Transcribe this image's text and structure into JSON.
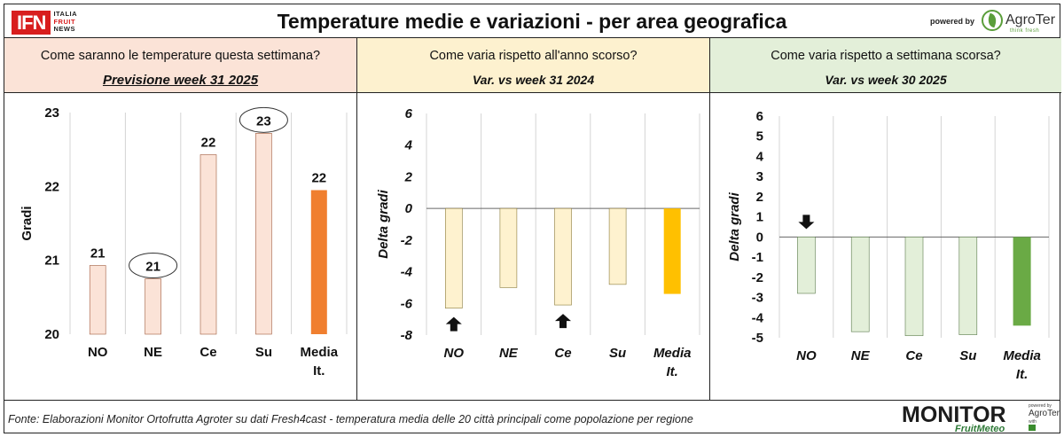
{
  "header": {
    "title": "Temperature medie e variazioni - per area geografica",
    "logo_left": {
      "mark": "IFN",
      "lines": [
        "ITALIA",
        "FRUIT",
        "NEWS"
      ]
    },
    "powered_by": "powered by",
    "logo_right": {
      "name": "AgroTer",
      "tagline": "think fresh"
    }
  },
  "panels": [
    {
      "question": "Come saranno le temperature questa settimana?",
      "subtitle": "Previsione week 31 2025",
      "accent": "#fbe3d7"
    },
    {
      "question": "Come varia rispetto all'anno scorso?",
      "subtitle": "Var. vs week 31 2024",
      "accent": "#fdf1cf"
    },
    {
      "question": "Come varia rispetto a settimana scorsa?",
      "subtitle": "Var. vs week 30 2025",
      "accent": "#e3efd9"
    }
  ],
  "chart_data": [
    {
      "type": "bar",
      "categories": [
        "NO",
        "NE",
        "Ce",
        "Su",
        "Media It."
      ],
      "values": [
        20.93,
        20.75,
        22.43,
        22.72,
        21.95
      ],
      "data_labels": [
        "21",
        "21",
        "22",
        "23",
        "22"
      ],
      "highlighted_labels": [
        "NE",
        "Su"
      ],
      "ylabel": "Gradi",
      "ylim": [
        20,
        23
      ],
      "yticks": [
        20,
        21,
        22,
        23
      ],
      "grid": true,
      "colors": {
        "bar": "#fbe3d7",
        "edge": "#a05a3c",
        "average": "#f07f2f"
      }
    },
    {
      "type": "bar",
      "categories": [
        "NO",
        "NE",
        "Ce",
        "Su",
        "Media It."
      ],
      "values": [
        -6.3,
        -5.0,
        -6.1,
        -4.8,
        -5.4
      ],
      "ylabel": "Delta gradi",
      "ylim": [
        -8,
        6
      ],
      "yticks": [
        6,
        4,
        2,
        0,
        -2,
        -4,
        -6,
        -8
      ],
      "grid": true,
      "up_arrows": [
        "NO",
        "Ce"
      ],
      "colors": {
        "bar": "#fef2cf",
        "edge": "#8a7a3a",
        "average": "#ffc000"
      }
    },
    {
      "type": "bar",
      "categories": [
        "NO",
        "NE",
        "Ce",
        "Su",
        "Media It."
      ],
      "values": [
        -2.8,
        -4.7,
        -4.9,
        -4.85,
        -4.4
      ],
      "ylabel": "Delta gradi",
      "ylim": [
        -5,
        6
      ],
      "yticks": [
        6,
        5,
        4,
        3,
        2,
        1,
        0,
        -1,
        -2,
        -3,
        -4,
        -5
      ],
      "grid": true,
      "down_arrows": [
        "NO"
      ],
      "colors": {
        "bar": "#e3efd9",
        "edge": "#5a7a4a",
        "average": "#6aaa45"
      }
    }
  ],
  "footer": {
    "source": "Fonte: Elaborazioni Monitor Ortofrutta Agroter su dati Fresh4cast - temperatura media delle 20 città principali come popolazione per regione",
    "logo": {
      "name": "MONITOR",
      "sub": "FruitMeteo",
      "powered_by": "powered by",
      "partner": "AgroTer",
      "with": "with"
    }
  }
}
